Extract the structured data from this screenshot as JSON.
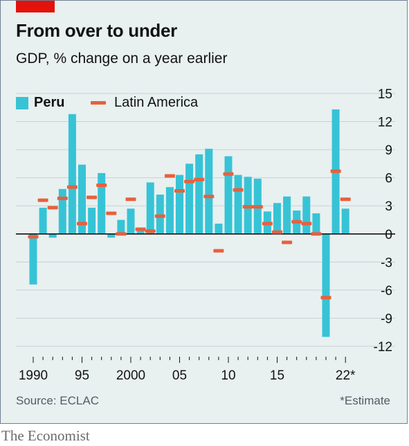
{
  "header": {
    "title": "From over to under",
    "subtitle": "GDP, % change on a year earlier"
  },
  "legend": {
    "peru": "Peru",
    "latam": "Latin America"
  },
  "source": "Source: ECLAC",
  "footnote": "*Estimate",
  "brand": "The Economist",
  "colors": {
    "peru": "#37c3d6",
    "latam": "#e8603c",
    "background": "#e8f0f0",
    "grid": "#c6d3d3",
    "zero": "#121212",
    "accent_red": "#e3120b"
  },
  "chart_data": {
    "type": "bar",
    "x": [
      1990,
      1991,
      1992,
      1993,
      1994,
      1995,
      1996,
      1997,
      1998,
      1999,
      2000,
      2001,
      2002,
      2003,
      2004,
      2005,
      2006,
      2007,
      2008,
      2009,
      2010,
      2011,
      2012,
      2013,
      2014,
      2015,
      2016,
      2017,
      2018,
      2019,
      2020,
      2021,
      2022
    ],
    "x_tick_labels": [
      {
        "x": 1990,
        "label": "1990"
      },
      {
        "x": 1995,
        "label": "95"
      },
      {
        "x": 2000,
        "label": "2000"
      },
      {
        "x": 2005,
        "label": "05"
      },
      {
        "x": 2010,
        "label": "10"
      },
      {
        "x": 2015,
        "label": "15"
      },
      {
        "x": 2022,
        "label": "22*"
      }
    ],
    "series": [
      {
        "name": "Peru",
        "style": "bar",
        "values": [
          -5.4,
          2.8,
          -0.4,
          4.8,
          12.8,
          7.4,
          2.8,
          6.5,
          -0.4,
          1.5,
          2.7,
          0.6,
          5.5,
          4.2,
          5.0,
          6.3,
          7.5,
          8.5,
          9.1,
          1.1,
          8.3,
          6.3,
          6.1,
          5.9,
          2.4,
          3.3,
          4.0,
          2.5,
          4.0,
          2.2,
          -11.0,
          13.3,
          2.7
        ]
      },
      {
        "name": "Latin America",
        "style": "dash",
        "values": [
          -0.3,
          3.6,
          2.8,
          3.8,
          5.0,
          1.1,
          3.9,
          5.2,
          2.2,
          0.0,
          3.7,
          0.5,
          0.3,
          1.9,
          6.2,
          4.6,
          5.6,
          5.8,
          4.0,
          -1.8,
          6.4,
          4.7,
          2.9,
          2.9,
          1.1,
          0.2,
          -0.9,
          1.3,
          1.1,
          0.0,
          -6.8,
          6.7,
          3.7
        ]
      }
    ],
    "ylim": [
      -12,
      15
    ],
    "yticks": [
      -12,
      -9,
      -6,
      -3,
      0,
      3,
      6,
      9,
      12,
      15
    ],
    "y_axis_side": "right",
    "legend_position": "top-left",
    "grid": true
  }
}
